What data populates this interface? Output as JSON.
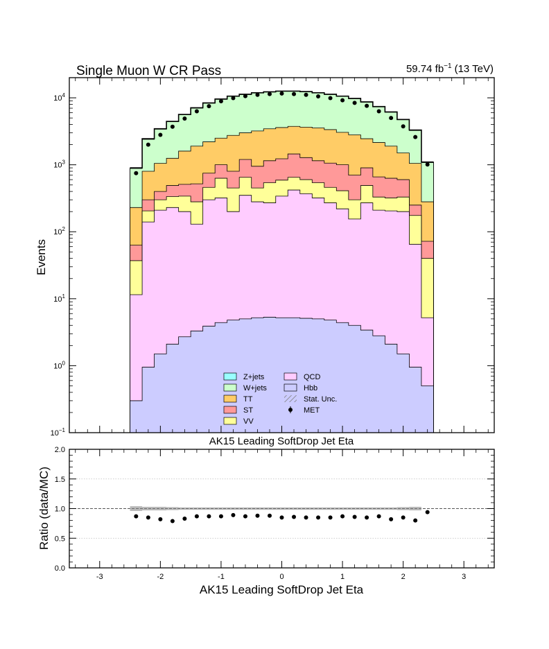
{
  "chart_data": [
    {
      "type": "bar",
      "subtype": "stacked-histogram",
      "title": "Single Muon W CR Pass",
      "lumi_label": "59.74 fb",
      "lumi_exponent": "−1",
      "energy_label": "(13 TeV)",
      "ylabel": "Events",
      "xlabel": "AK15 Leading SoftDrop Jet Eta",
      "yscale": "log",
      "ylim": [
        0.1,
        20000
      ],
      "xlim": [
        -3.5,
        3.5
      ],
      "y_ticks": [
        {
          "base": "10",
          "exp": "−1",
          "value": 0.1
        },
        {
          "base": "10",
          "exp": "0",
          "value": 1
        },
        {
          "base": "10",
          "exp": "1",
          "value": 10
        },
        {
          "base": "10",
          "exp": "2",
          "value": 100
        },
        {
          "base": "10",
          "exp": "3",
          "value": 1000
        },
        {
          "base": "10",
          "exp": "4",
          "value": 10000
        }
      ],
      "bin_edges": [
        -2.5,
        -2.3,
        -2.1,
        -1.9,
        -1.7,
        -1.5,
        -1.3,
        -1.1,
        -0.9,
        -0.7,
        -0.5,
        -0.3,
        -0.1,
        0.1,
        0.3,
        0.5,
        0.7,
        0.9,
        1.1,
        1.3,
        1.5,
        1.7,
        1.9,
        2.1,
        2.3,
        2.5
      ],
      "series_cumulative": [
        {
          "name": "Hbb",
          "color": "#ccccff",
          "values": [
            0.3,
            0.95,
            1.5,
            2.1,
            2.7,
            3.3,
            3.9,
            4.4,
            4.8,
            5.0,
            5.2,
            5.3,
            5.2,
            5.2,
            5.1,
            5.0,
            4.8,
            4.4,
            4.0,
            3.4,
            2.8,
            2.1,
            1.5,
            0.95,
            0.5
          ]
        },
        {
          "name": "QCD",
          "color": "#ffccff",
          "values": [
            11.5,
            140,
            210,
            230,
            200,
            130,
            300,
            320,
            200,
            350,
            280,
            270,
            340,
            420,
            370,
            320,
            270,
            220,
            155,
            270,
            210,
            205,
            200,
            65,
            5.2
          ]
        },
        {
          "name": "VV",
          "color": "#ffff99",
          "values": [
            37,
            205,
            300,
            335,
            340,
            280,
            460,
            630,
            450,
            650,
            450,
            540,
            590,
            650,
            600,
            540,
            460,
            410,
            300,
            490,
            330,
            320,
            330,
            175,
            40
          ]
        },
        {
          "name": "ST",
          "color": "#ff9999",
          "values": [
            63,
            300,
            400,
            490,
            510,
            520,
            750,
            1000,
            800,
            1200,
            950,
            1150,
            1230,
            1450,
            1280,
            1150,
            1060,
            1000,
            700,
            900,
            660,
            630,
            600,
            250,
            72
          ]
        },
        {
          "name": "TT",
          "color": "#ffcc66",
          "values": [
            230,
            800,
            1050,
            1250,
            1600,
            1900,
            2200,
            2500,
            2750,
            3000,
            3200,
            3450,
            3600,
            3750,
            3650,
            3550,
            3350,
            3050,
            2800,
            2450,
            2150,
            1900,
            1500,
            1050,
            280
          ]
        },
        {
          "name": "W+jets",
          "color": "#ccffcc",
          "values": [
            880,
            2400,
            3400,
            4400,
            5600,
            7000,
            8300,
            9500,
            10500,
            11200,
            11800,
            12200,
            12500,
            12500,
            12300,
            11800,
            11200,
            10500,
            9700,
            8600,
            7300,
            6100,
            4700,
            3250,
            1080
          ]
        },
        {
          "name": "Z+jets",
          "color": "#99ffff",
          "values": [
            900,
            2450,
            3450,
            4450,
            5650,
            7100,
            8400,
            9600,
            10600,
            11300,
            11900,
            12300,
            12600,
            12600,
            12400,
            11900,
            11300,
            10600,
            9800,
            8700,
            7400,
            6150,
            4750,
            3300,
            1100
          ]
        }
      ],
      "data_points": {
        "name": "MET",
        "x": [
          -2.4,
          -2.2,
          -2.0,
          -1.8,
          -1.6,
          -1.4,
          -1.2,
          -1.0,
          -0.8,
          -0.6,
          -0.4,
          -0.2,
          0.0,
          0.2,
          0.4,
          0.6,
          0.8,
          1.0,
          1.2,
          1.4,
          1.6,
          1.8,
          2.0,
          2.2,
          2.4
        ],
        "y": [
          750,
          2000,
          2800,
          3700,
          4900,
          6300,
          7500,
          8900,
          9900,
          10600,
          11100,
          11400,
          11600,
          11400,
          11100,
          10500,
          9900,
          9200,
          8400,
          7600,
          6300,
          5000,
          3750,
          2600,
          1010
        ]
      },
      "legend": {
        "placement": "lower-center",
        "left_column": [
          {
            "label": "Z+jets",
            "color": "#99ffff",
            "kind": "box"
          },
          {
            "label": "W+jets",
            "color": "#ccffcc",
            "kind": "box"
          },
          {
            "label": "TT",
            "color": "#ffcc66",
            "kind": "box"
          },
          {
            "label": "ST",
            "color": "#ff9999",
            "kind": "box"
          },
          {
            "label": "VV",
            "color": "#ffff99",
            "kind": "box"
          }
        ],
        "right_column": [
          {
            "label": "QCD",
            "color": "#ffccff",
            "kind": "box"
          },
          {
            "label": "Hbb",
            "color": "#ccccff",
            "kind": "box"
          },
          {
            "label": "Stat. Unc.",
            "color": "#808080",
            "kind": "hatch"
          },
          {
            "label": "MET",
            "color": "#000000",
            "kind": "marker"
          }
        ]
      },
      "grid": false
    },
    {
      "type": "scatter",
      "ylabel": "Ratio (data/MC)",
      "xlabel": "AK15 Leading SoftDrop Jet Eta",
      "ylim": [
        0,
        2
      ],
      "xlim": [
        -3.5,
        3.5
      ],
      "y_ticks": [
        "0.0",
        "0.5",
        "1.0",
        "1.5",
        "2.0"
      ],
      "y_tick_values": [
        0,
        0.5,
        1.0,
        1.5,
        2.0
      ],
      "x_ticks": [
        "-3",
        "-2",
        "-1",
        "0",
        "1",
        "2",
        "3"
      ],
      "x_tick_values": [
        -3,
        -2,
        -1,
        0,
        1,
        2,
        3
      ],
      "reference_line": 1.0,
      "grid": "horizontal-dotted",
      "x": [
        -2.4,
        -2.2,
        -2.0,
        -1.8,
        -1.6,
        -1.4,
        -1.2,
        -1.0,
        -0.8,
        -0.6,
        -0.4,
        -0.2,
        0.0,
        0.2,
        0.4,
        0.6,
        0.8,
        1.0,
        1.2,
        1.4,
        1.6,
        1.8,
        2.0,
        2.2,
        2.4
      ],
      "y": [
        0.87,
        0.85,
        0.82,
        0.79,
        0.83,
        0.87,
        0.87,
        0.87,
        0.89,
        0.87,
        0.88,
        0.88,
        0.85,
        0.86,
        0.85,
        0.85,
        0.85,
        0.87,
        0.86,
        0.85,
        0.87,
        0.82,
        0.85,
        0.8,
        0.94
      ],
      "stat_unc_band": {
        "color": "#808080",
        "x_range": [
          -2.5,
          2.3
        ],
        "half_width": [
          0.04,
          0.03,
          0.03,
          0.025,
          0.02,
          0.02,
          0.02,
          0.02,
          0.02,
          0.02,
          0.02,
          0.02,
          0.02,
          0.02,
          0.02,
          0.02,
          0.02,
          0.02,
          0.02,
          0.02,
          0.02,
          0.02,
          0.025,
          0.03
        ]
      }
    }
  ]
}
